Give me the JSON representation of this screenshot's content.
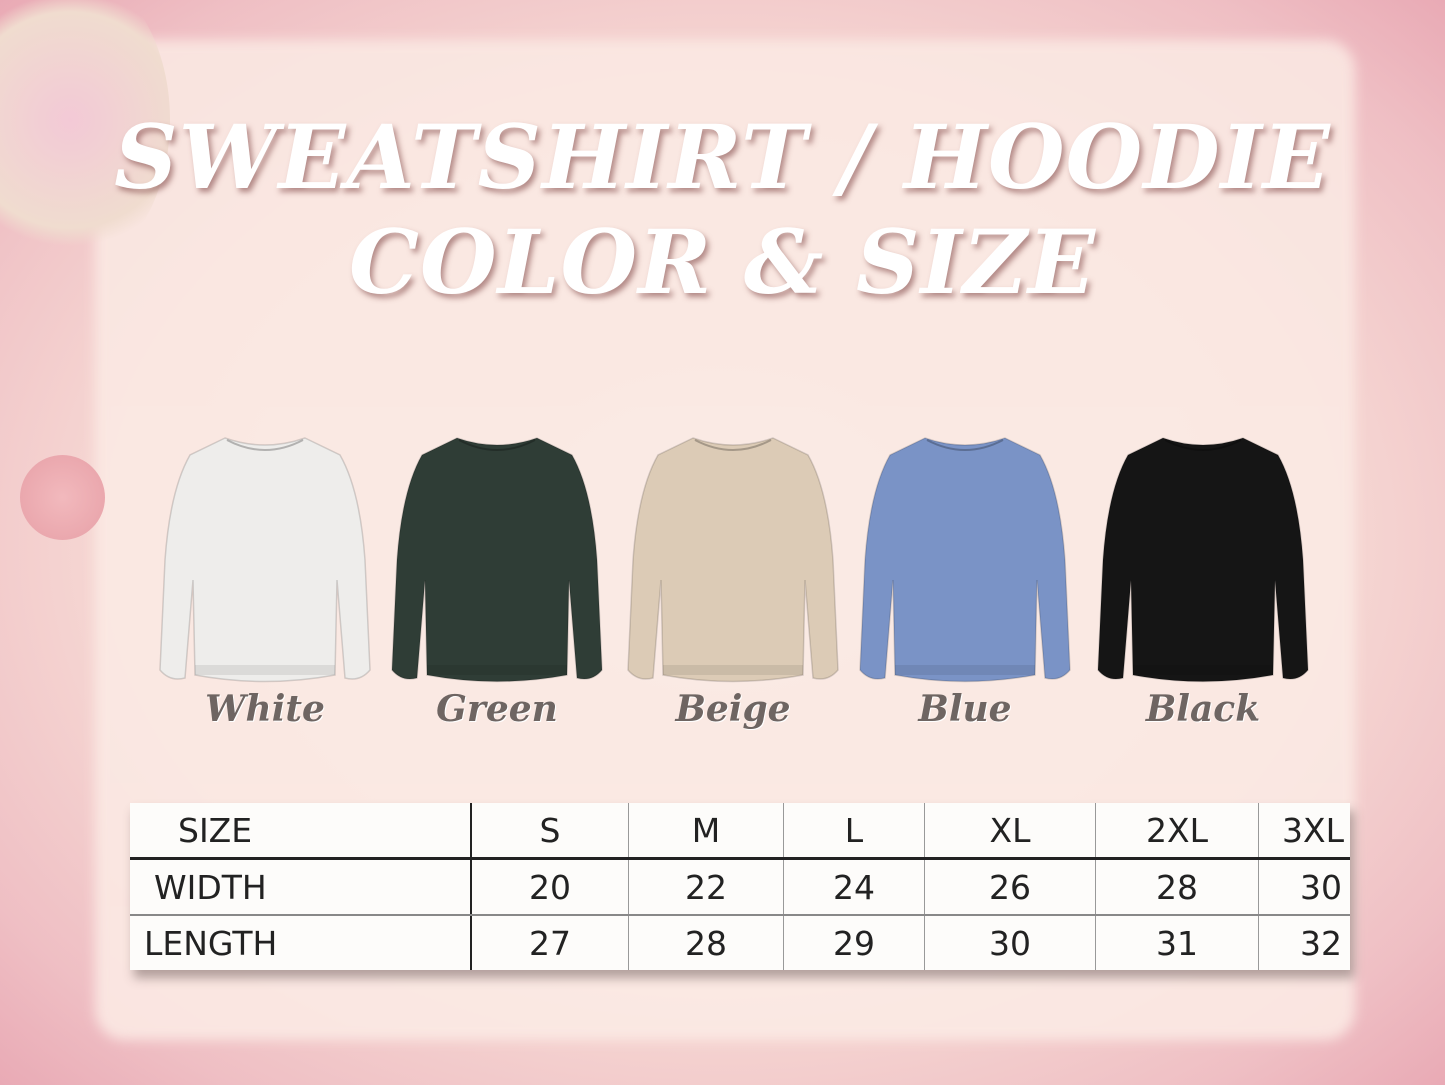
{
  "title": {
    "line1": "SWEATSHIRT / HOODIE",
    "line2": "COLOR & SIZE"
  },
  "colors": [
    {
      "name": "White",
      "hex": "#eeedeb"
    },
    {
      "name": "Green",
      "hex": "#2f3d36"
    },
    {
      "name": "Beige",
      "hex": "#dccbb6"
    },
    {
      "name": "Blue",
      "hex": "#7a93c6"
    },
    {
      "name": "Black",
      "hex": "#151515"
    }
  ],
  "size_table": {
    "header": [
      "SIZE",
      "S",
      "M",
      "L",
      "XL",
      "2XL",
      "3XL"
    ],
    "rows": [
      [
        "WIDTH",
        "20",
        "22",
        "24",
        "26",
        "28",
        "30"
      ],
      [
        "LENGTH",
        "27",
        "28",
        "29",
        "30",
        "31",
        "32"
      ]
    ]
  }
}
